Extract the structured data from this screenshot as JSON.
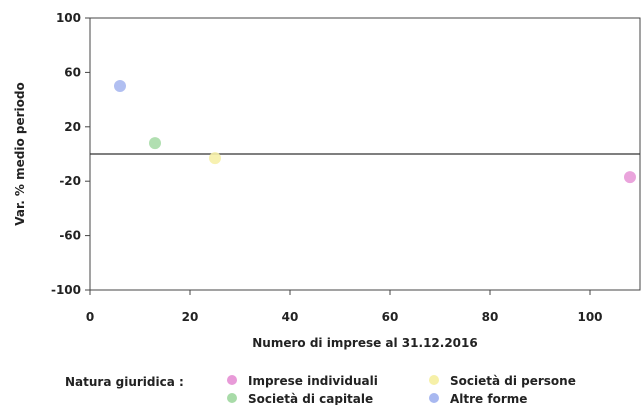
{
  "chart_data": {
    "type": "scatter",
    "title": "",
    "xlabel": "Numero di imprese al 31.12.2016",
    "ylabel": "Var. % medio periodo",
    "xlim": [
      0,
      110
    ],
    "ylim": [
      -100,
      100
    ],
    "xticks": [
      0,
      20,
      40,
      60,
      80,
      100
    ],
    "yticks": [
      -100,
      -60,
      -20,
      20,
      60,
      100
    ],
    "grid": false,
    "legend": {
      "title": "Natura giuridica :",
      "placement": "bottom"
    },
    "series": [
      {
        "name": "Imprese individuali",
        "color": "#e89ad8",
        "points": [
          [
            108,
            -17
          ]
        ]
      },
      {
        "name": "Società di persone",
        "color": "#f6f0a8",
        "points": [
          [
            25,
            -3
          ]
        ]
      },
      {
        "name": "Società di capitale",
        "color": "#a8dba8",
        "points": [
          [
            13,
            8
          ]
        ]
      },
      {
        "name": "Altre forme",
        "color": "#a8b8f0",
        "points": [
          [
            6,
            50
          ]
        ]
      }
    ]
  }
}
